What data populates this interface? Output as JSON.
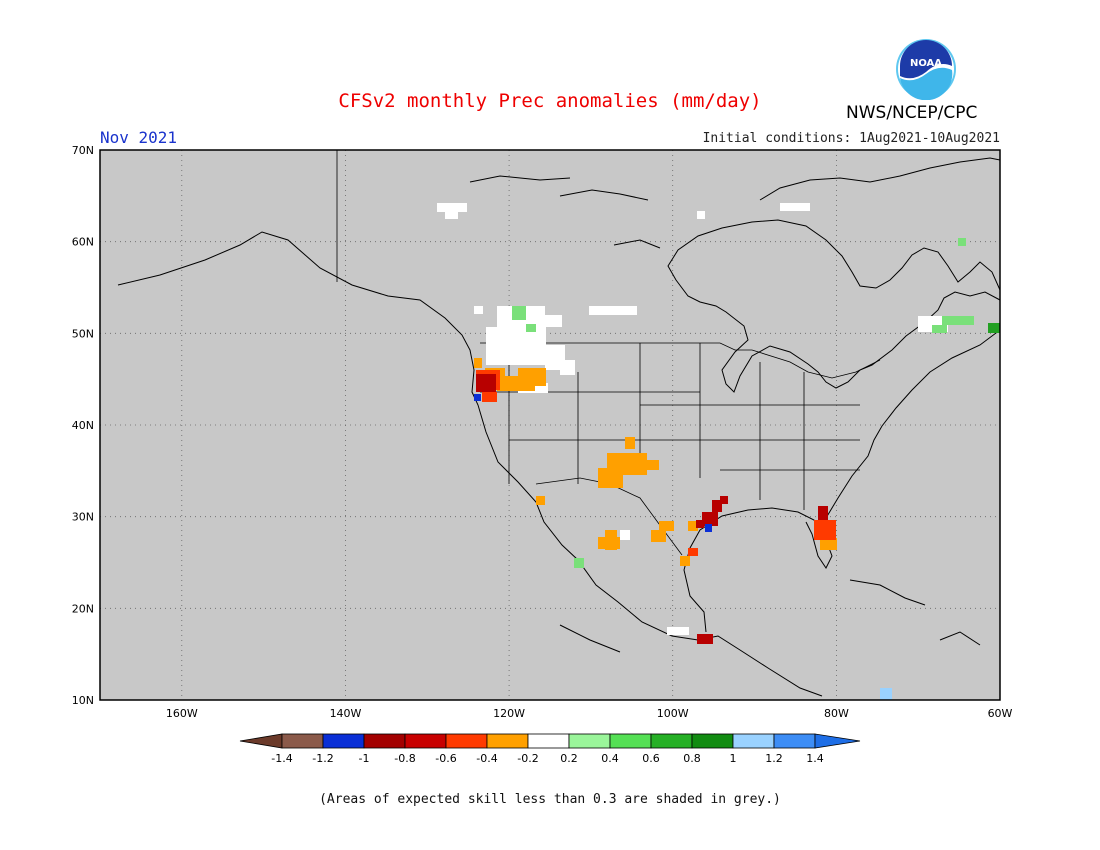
{
  "header": {
    "title": "CFSv2 monthly Prec anomalies (mm/day)",
    "period": "Nov 2021",
    "initial_conditions": "Initial conditions: 1Aug2021-10Aug2021",
    "agency": "NWS/NCEP/CPC",
    "logo_text": "NOAA"
  },
  "map": {
    "lat_labels": [
      "70N",
      "60N",
      "50N",
      "40N",
      "30N",
      "20N",
      "10N"
    ],
    "lon_labels": [
      "160W",
      "140W",
      "120W",
      "100W",
      "80W",
      "60W"
    ],
    "background_color": "#c8c8c8",
    "grid": true
  },
  "legend": {
    "tick_labels": [
      "-1.4",
      "-1.2",
      "-1",
      "-0.8",
      "-0.6",
      "-0.4",
      "-0.2",
      "0.2",
      "0.4",
      "0.6",
      "0.8",
      "1",
      "1.2",
      "1.4"
    ],
    "colors": [
      "#8b5a4a",
      "#0a2fd6",
      "#a30000",
      "#c80000",
      "#ff3a00",
      "#ffa000",
      "#ffffff",
      "#9af59a",
      "#55e055",
      "#26b026",
      "#128c12",
      "#9ad2ff",
      "#3d8df5"
    ],
    "under_color": "#6b3a2a",
    "over_color": "#1e6ee6"
  },
  "footnote": "(Areas of expected skill less than 0.3 are shaded in grey.)"
}
